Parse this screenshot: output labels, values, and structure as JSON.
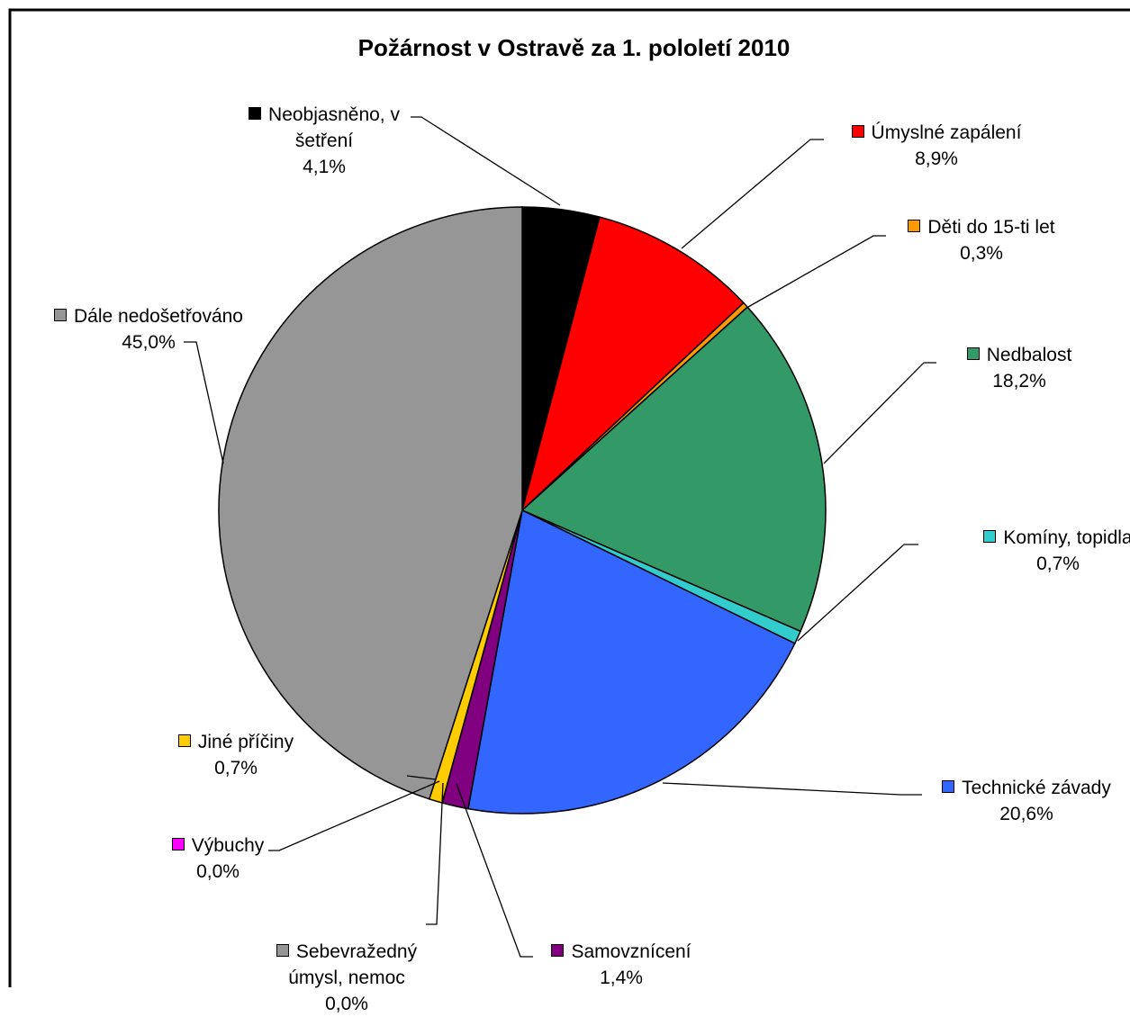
{
  "chart_data": {
    "type": "pie",
    "title": "Požárnost v Ostravě za 1. pololetí 2010",
    "categories": [
      "Neobjasněno, v šetření",
      "Úmyslné zapálení",
      "Děti do 15-ti let",
      "Nedbalost",
      "Komíny, topidla",
      "Technické závady",
      "Samovznícení",
      "Sebevražedný úmysl, nemoc",
      "Výbuchy",
      "Jiné příčiny",
      "Dále nedošetřováno"
    ],
    "values": [
      4.1,
      8.9,
      0.3,
      18.2,
      0.7,
      20.6,
      1.4,
      0.0,
      0.0,
      0.7,
      45.0
    ],
    "value_labels": [
      "4,1%",
      "8,9%",
      "0,3%",
      "18,2%",
      "0,7%",
      "20,6%",
      "1,4%",
      "0,0%",
      "0,0%",
      "0,7%",
      "45,0%"
    ],
    "colors": [
      "#000000",
      "#ff0000",
      "#ff9900",
      "#339966",
      "#33cccc",
      "#3366ff",
      "#800080",
      "#969696",
      "#ff00ff",
      "#ffcc00",
      "#969696"
    ]
  }
}
